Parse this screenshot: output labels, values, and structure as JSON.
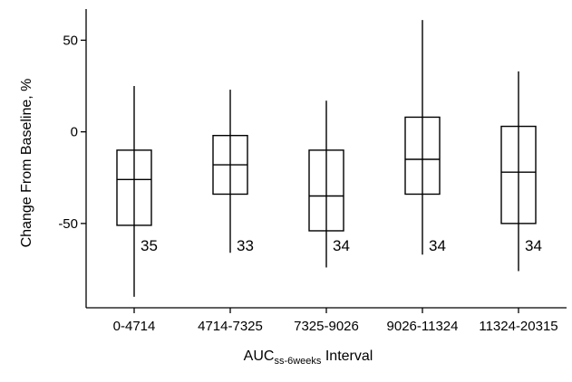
{
  "chart_data": {
    "type": "boxplot",
    "ylabel": "Change From Baseline, %",
    "xlabel": {
      "main": "AUC",
      "subscript": "ss-6weeks",
      "suffix": " Interval"
    },
    "ylim": [
      -96,
      67
    ],
    "yticks": [
      50,
      0,
      -50
    ],
    "ytick_labels": [
      "50",
      "0",
      "-50"
    ],
    "grid": false,
    "categories": [
      "0-4714",
      "4714-7325",
      "7325-9026",
      "9026-11324",
      "11324-20315"
    ],
    "boxes": [
      {
        "whisker_low": -90,
        "q1": -51,
        "median": -26,
        "q3": -10,
        "whisker_high": 25,
        "n": "35"
      },
      {
        "whisker_low": -66,
        "q1": -34,
        "median": -18,
        "q3": -2,
        "whisker_high": 23,
        "n": "33"
      },
      {
        "whisker_low": -74,
        "q1": -54,
        "median": -35,
        "q3": -10,
        "whisker_high": 17,
        "n": "34"
      },
      {
        "whisker_low": -67,
        "q1": -34,
        "median": -15,
        "q3": 8,
        "whisker_high": 61,
        "n": "34"
      },
      {
        "whisker_low": -76,
        "q1": -50,
        "median": -22,
        "q3": 3,
        "whisker_high": 33,
        "n": "34"
      }
    ]
  }
}
